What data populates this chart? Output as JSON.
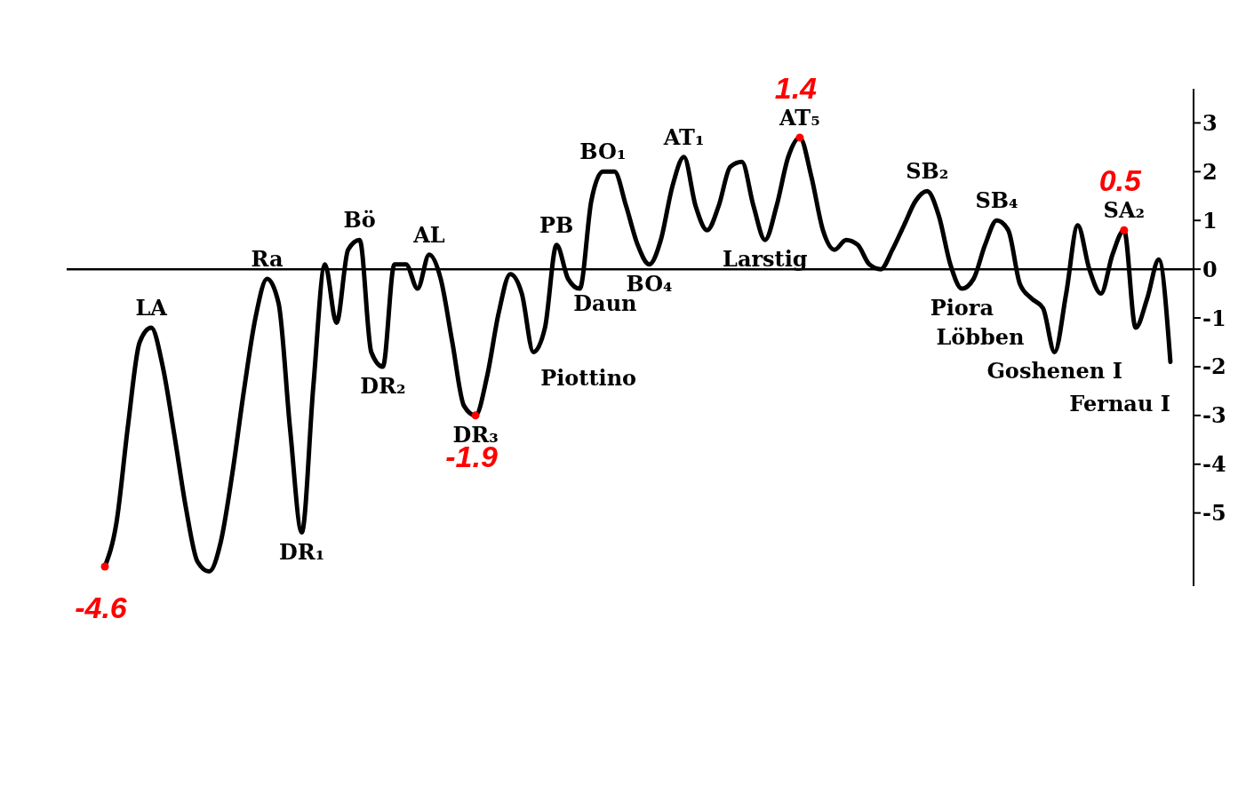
{
  "chart_data": {
    "type": "line",
    "categories": [
      null,
      null,
      null,
      null,
      null,
      null,
      null,
      null,
      null,
      null,
      null,
      null,
      null,
      null,
      null,
      null,
      null,
      null,
      null,
      null,
      null,
      null,
      null,
      null,
      null,
      null,
      null,
      null,
      null,
      null,
      null,
      null,
      null,
      null,
      null,
      null,
      null,
      null,
      null,
      null,
      null,
      null,
      null,
      null,
      null,
      null,
      null,
      null,
      null,
      null,
      null,
      null,
      null,
      null,
      null,
      null,
      null,
      null,
      null,
      null,
      null,
      null,
      null,
      null,
      null,
      null,
      null,
      null,
      null,
      null,
      null,
      null,
      null,
      null,
      null,
      null,
      null,
      null,
      null,
      null,
      null,
      null,
      null,
      null,
      null,
      null,
      null,
      null,
      null,
      null,
      null,
      null,
      null
    ],
    "series": [
      {
        "color": "#000000",
        "values": [
          -6.1,
          -5.2,
          -3.2,
          -1.5,
          -1.2,
          -2.0,
          -3.4,
          -4.9,
          -6.0,
          -6.2,
          -5.6,
          -4.2,
          -2.5,
          -1.0,
          -0.2,
          -0.7,
          -3.3,
          -5.4,
          -2.4,
          0.1,
          -1.1,
          0.4,
          0.6,
          -1.7,
          -2.0,
          0.1,
          0.1,
          -0.4,
          0.3,
          -0.2,
          -1.5,
          -2.8,
          -3.0,
          -2.2,
          -0.9,
          -0.1,
          -0.5,
          -1.7,
          -1.2,
          0.5,
          -0.2,
          -0.4,
          1.4,
          2.0,
          2.0,
          1.3,
          0.5,
          0.1,
          0.6,
          1.7,
          2.3,
          1.3,
          0.8,
          1.3,
          2.1,
          2.2,
          1.3,
          0.6,
          1.3,
          2.3,
          2.7,
          1.9,
          0.8,
          0.4,
          0.6,
          0.5,
          0.1,
          0.0,
          0.4,
          0.9,
          1.4,
          1.6,
          1.1,
          0.1,
          -0.4,
          -0.2,
          0.5,
          1.0,
          0.8,
          -0.3,
          -0.6,
          -0.8,
          -1.7,
          -0.5,
          0.9,
          0.0,
          -0.5,
          0.3,
          0.8,
          -1.2,
          -0.6,
          0.2,
          -1.9
        ],
        "value_labels": [
          null,
          null,
          null,
          null,
          "LA",
          null,
          null,
          null,
          null,
          null,
          null,
          null,
          null,
          null,
          "Ra",
          null,
          null,
          "DR₁",
          null,
          null,
          null,
          null,
          "Bö",
          null,
          "DR₂",
          null,
          null,
          null,
          "AL",
          null,
          null,
          null,
          "DR₃",
          null,
          null,
          null,
          null,
          "Piottino",
          null,
          "PB",
          "Daun",
          null,
          null,
          "BO₁",
          null,
          null,
          null,
          "BO₄",
          null,
          null,
          "AT₁",
          null,
          null,
          null,
          null,
          null,
          null,
          "Larstig",
          null,
          null,
          "AT₅",
          null,
          null,
          null,
          null,
          null,
          null,
          null,
          null,
          null,
          null,
          "SB₂",
          null,
          null,
          "Piora",
          null,
          null,
          "SB₄",
          null,
          null,
          "Löbben",
          null,
          "Goshenen I",
          null,
          null,
          null,
          null,
          null,
          "SA₂",
          null,
          null,
          null,
          "Fernau I"
        ]
      },
      {
        "type": "scatter",
        "color": "#ff0000",
        "values": [
          -6.1,
          null,
          null,
          null,
          null,
          null,
          null,
          null,
          null,
          null,
          null,
          null,
          null,
          null,
          null,
          null,
          null,
          null,
          null,
          null,
          null,
          null,
          null,
          null,
          null,
          null,
          null,
          null,
          null,
          null,
          null,
          null,
          -3.0,
          null,
          null,
          null,
          null,
          null,
          null,
          null,
          null,
          null,
          null,
          null,
          null,
          null,
          null,
          null,
          null,
          null,
          null,
          null,
          null,
          null,
          null,
          null,
          null,
          null,
          null,
          null,
          2.7,
          null,
          null,
          null,
          null,
          null,
          null,
          null,
          null,
          null,
          null,
          null,
          null,
          null,
          null,
          null,
          null,
          null,
          null,
          null,
          null,
          null,
          null,
          null,
          null,
          null,
          null,
          null,
          0.8,
          null,
          null,
          null,
          null
        ],
        "marker": "circle"
      }
    ],
    "annotations": [
      {
        "text": "-4.6",
        "y": -6.1
      },
      {
        "text": "-1.9",
        "y": -3.0
      },
      {
        "text": "1.4",
        "y": 2.7
      },
      {
        "text": "0.5",
        "y": 0.8
      }
    ],
    "ylim": [
      -6.5,
      3.7
    ],
    "yticks": [
      -5,
      -4,
      -3,
      -2,
      -1,
      0,
      1,
      2,
      3
    ],
    "tick_labels": "y",
    "marker": "none",
    "ref_lines": [
      {
        "axis": "y",
        "value": 0,
        "color": "#000000"
      }
    ]
  }
}
